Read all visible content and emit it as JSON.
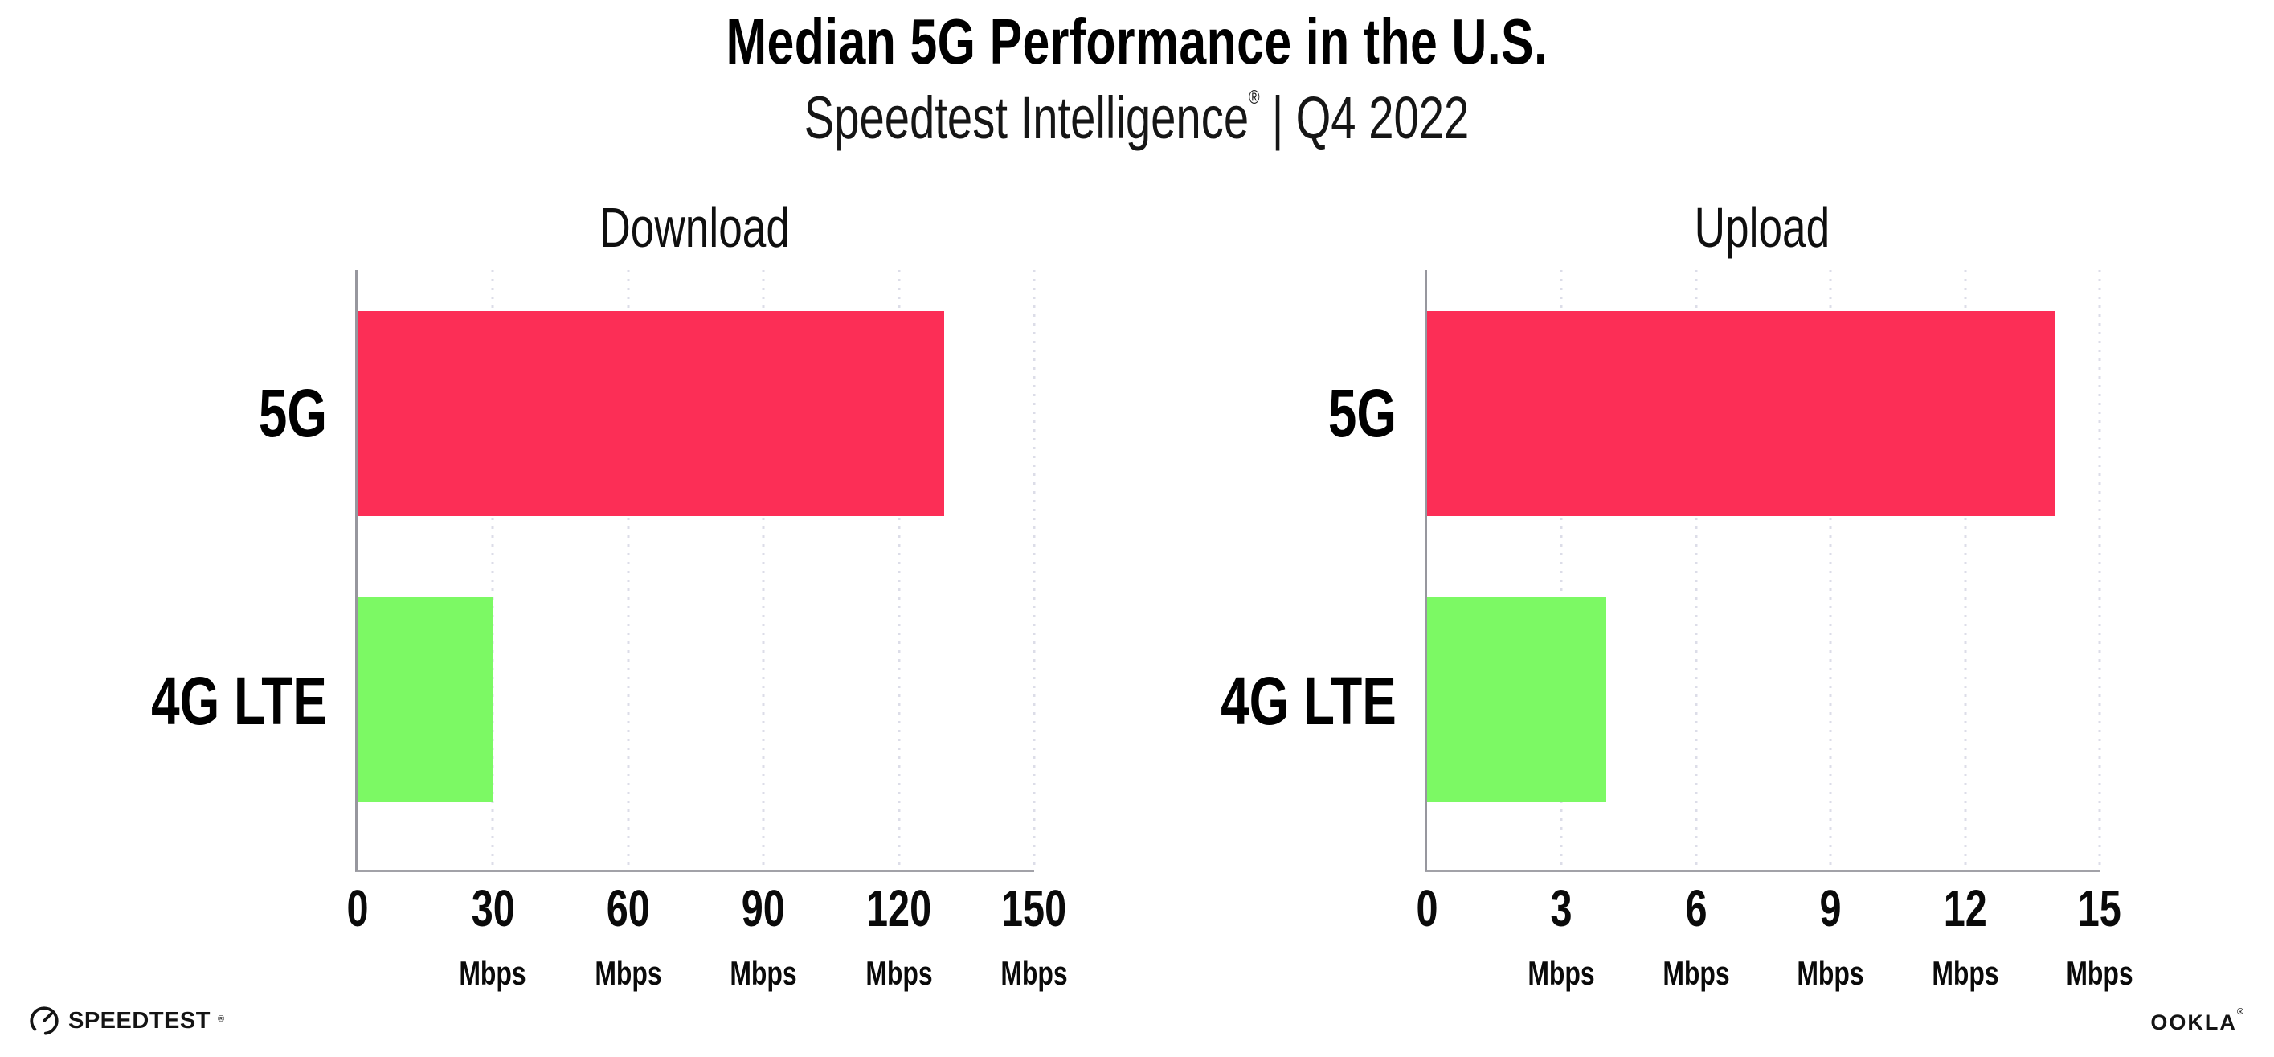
{
  "header": {
    "title": "Median 5G Performance in the U.S.",
    "subtitle": {
      "brand": "Speedtest Intelligence",
      "reg": "®",
      "separator": "|",
      "period": "Q4 2022"
    }
  },
  "chart_data": [
    {
      "type": "bar",
      "orientation": "horizontal",
      "title": "Download",
      "categories": [
        "5G",
        "4G LTE"
      ],
      "values": [
        130,
        30
      ],
      "unit": "Mbps",
      "xlim": [
        0,
        150
      ],
      "xticks": [
        0,
        30,
        60,
        90,
        120,
        150
      ],
      "tick_unit_label": "Mbps",
      "bar_colors": [
        "#FC2E56",
        "#7CF964"
      ],
      "grid": "dotted-vertical",
      "legend": "none"
    },
    {
      "type": "bar",
      "orientation": "horizontal",
      "title": "Upload",
      "categories": [
        "5G",
        "4G LTE"
      ],
      "values": [
        14,
        4
      ],
      "unit": "Mbps",
      "xlim": [
        0,
        15
      ],
      "xticks": [
        0,
        3,
        6,
        9,
        12,
        15
      ],
      "tick_unit_label": "Mbps",
      "bar_colors": [
        "#FC2E56",
        "#7CF964"
      ],
      "grid": "dotted-vertical",
      "legend": "none"
    }
  ],
  "footer": {
    "speedtest_logo_text": "SPEEDTEST",
    "speedtest_reg": "®",
    "ookla_logo_text": "OOKLA",
    "ookla_reg": "®"
  },
  "colors": {
    "bar_5g": "#FC2E56",
    "bar_4g_lte": "#7CF964",
    "axis": "#9a9aa0",
    "gridline": "#dcdde8",
    "text": "#0d0d0d"
  }
}
